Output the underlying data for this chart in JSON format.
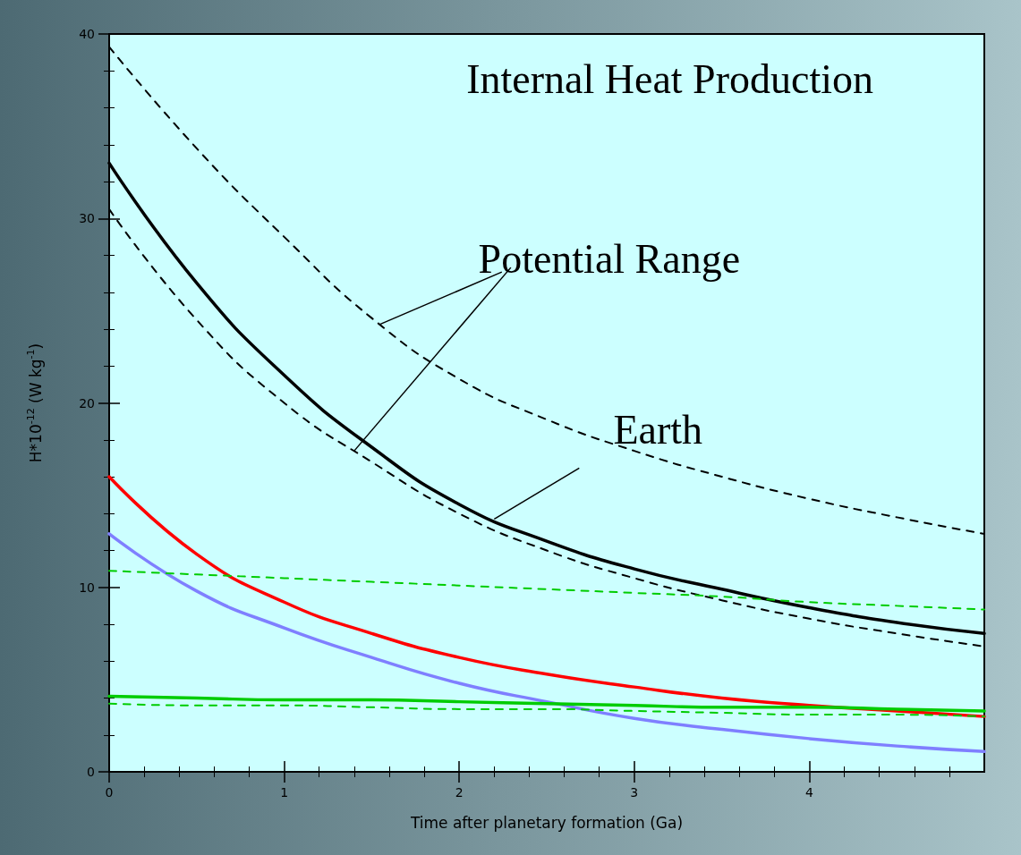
{
  "chart_data": {
    "type": "line",
    "title": "Internal Heat Production",
    "xlabel": "Time after planetary formation (Ga)",
    "ylabel": "H*10$^{-12}$ (W kg$^{-1}$)",
    "x": [
      0,
      0.5,
      1,
      1.5,
      2,
      2.5,
      3,
      3.5,
      4,
      4.5,
      5
    ],
    "xlim": [
      0,
      5
    ],
    "xticks": [
      0,
      1,
      2,
      3,
      4
    ],
    "ylim": [
      0,
      40
    ],
    "yticks": [
      0,
      10,
      20,
      30,
      40
    ],
    "grid": false,
    "marker": "none",
    "series": [
      {
        "color": "#000000",
        "line_style": "dashed",
        "values": [
          39.3,
          33.8,
          29.0,
          24.6,
          21.3,
          19.1,
          17.4,
          16.0,
          14.8,
          13.8,
          12.9
        ]
      },
      {
        "color": "#000000",
        "line_style": "dashed",
        "values": [
          30.5,
          24.5,
          20.0,
          16.8,
          14.0,
          12.0,
          10.5,
          9.3,
          8.3,
          7.5,
          6.8
        ]
      },
      {
        "color": "#000000",
        "line_style": "solid",
        "values": [
          33.0,
          26.5,
          21.5,
          17.6,
          14.5,
          12.5,
          11.0,
          9.9,
          8.9,
          8.1,
          7.5
        ]
      },
      {
        "color": "#ff0000",
        "line_style": "solid",
        "values": [
          16.0,
          11.8,
          9.2,
          7.5,
          6.2,
          5.3,
          4.6,
          4.0,
          3.6,
          3.3,
          3.0
        ]
      },
      {
        "color": "#7f7fff",
        "line_style": "solid",
        "values": [
          12.9,
          9.8,
          7.8,
          6.2,
          4.8,
          3.8,
          2.9,
          2.3,
          1.8,
          1.4,
          1.1
        ]
      },
      {
        "color": "#00cc00",
        "line_style": "dashed",
        "values": [
          10.9,
          10.7,
          10.5,
          10.3,
          10.1,
          9.9,
          9.7,
          9.5,
          9.2,
          9.0,
          8.8
        ]
      },
      {
        "color": "#00cc00",
        "line_style": "solid",
        "values": [
          4.1,
          4.0,
          3.9,
          3.9,
          3.8,
          3.7,
          3.6,
          3.5,
          3.5,
          3.4,
          3.3
        ]
      },
      {
        "color": "#00cc00",
        "line_style": "dashed",
        "values": [
          3.7,
          3.6,
          3.6,
          3.5,
          3.4,
          3.4,
          3.3,
          3.2,
          3.1,
          3.1,
          3.0
        ]
      }
    ],
    "annotations": [
      {
        "text": "Potential Range",
        "x": 1.4,
        "y": 17.4
      },
      {
        "text": "Earth",
        "x": 2.2,
        "y": 13.7
      }
    ]
  }
}
